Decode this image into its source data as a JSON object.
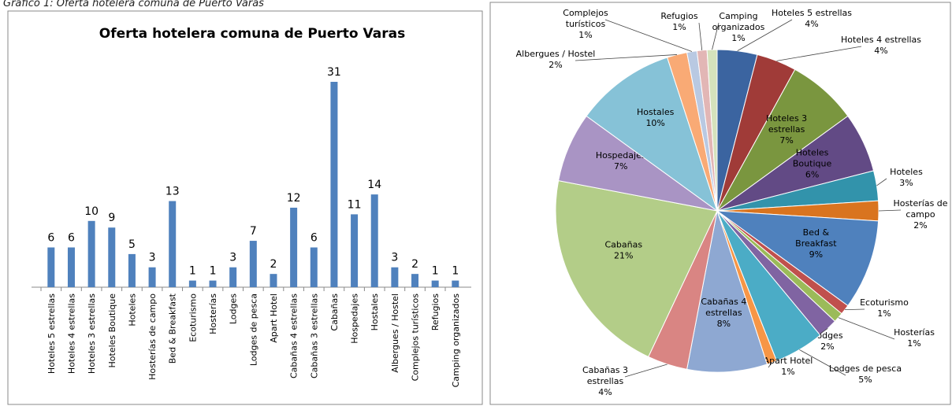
{
  "caption": "Gráfico 1: Oferta hotelera comuna de Puerto Varas",
  "chart_data": [
    {
      "type": "bar",
      "title": "Oferta hotelera comuna de Puerto Varas",
      "color": "#4F81BD",
      "categories": [
        "Hoteles 5 estrellas",
        "Hoteles 4 estrellas",
        "Hoteles 3 estrellas",
        "Hoteles Boutique",
        "Hoteles",
        "Hosterías de campo",
        "Bed & Breakfast",
        "Ecoturismo",
        "Hosterías",
        "Lodges",
        "Lodges de pesca",
        "Apart Hotel",
        "Cabañas 4 estrellas",
        "Cabañas 3 estrellas",
        "Cabañas",
        "Hospedajes",
        "Hostales",
        "Albergues / Hostel",
        "Complejos turísticos",
        "Refugios",
        "Camping organizados"
      ],
      "values": [
        6,
        6,
        10,
        9,
        5,
        3,
        13,
        1,
        1,
        3,
        7,
        2,
        12,
        6,
        31,
        11,
        14,
        3,
        2,
        1,
        1
      ]
    },
    {
      "type": "pie",
      "categories": [
        "Hoteles 5 estrellas",
        "Hoteles 4 estrellas",
        "Hoteles 3 estrellas",
        "Hoteles Boutique",
        "Hoteles",
        "Hosterías de campo",
        "Bed & Breakfast",
        "Ecoturismo",
        "Hosterías",
        "Lodges",
        "Lodges de pesca",
        "Apart Hotel",
        "Cabañas 4 estrellas",
        "Cabañas 3 estrellas",
        "Cabañas",
        "Hospedajes",
        "Hostales",
        "Albergues / Hostel",
        "Complejos turísticos",
        "Refugios",
        "Camping organizados"
      ],
      "values": [
        4,
        4,
        7,
        6,
        3,
        2,
        9,
        1,
        1,
        2,
        5,
        1,
        8,
        4,
        21,
        7,
        10,
        2,
        1,
        1,
        1
      ],
      "value_labels": [
        "4%",
        "4%",
        "7%",
        "6%",
        "3%",
        "2%",
        "9%",
        "1%",
        "1%",
        "2%",
        "5%",
        "1%",
        "8%",
        "4%",
        "21%",
        "7%",
        "10%",
        "2%",
        "1%",
        "1%",
        "1%"
      ],
      "colors": [
        "#3B64A0",
        "#A03B38",
        "#7A963F",
        "#624A85",
        "#3293AB",
        "#D9741F",
        "#4F81BD",
        "#C0504D",
        "#9BBB59",
        "#8064A2",
        "#4BACC6",
        "#F79646",
        "#8EA8D2",
        "#D98583",
        "#B3CD88",
        "#A994C4",
        "#86C2D7",
        "#F9AA75",
        "#B9C9E2",
        "#E2B6B5",
        "#D5E2BC"
      ]
    }
  ]
}
